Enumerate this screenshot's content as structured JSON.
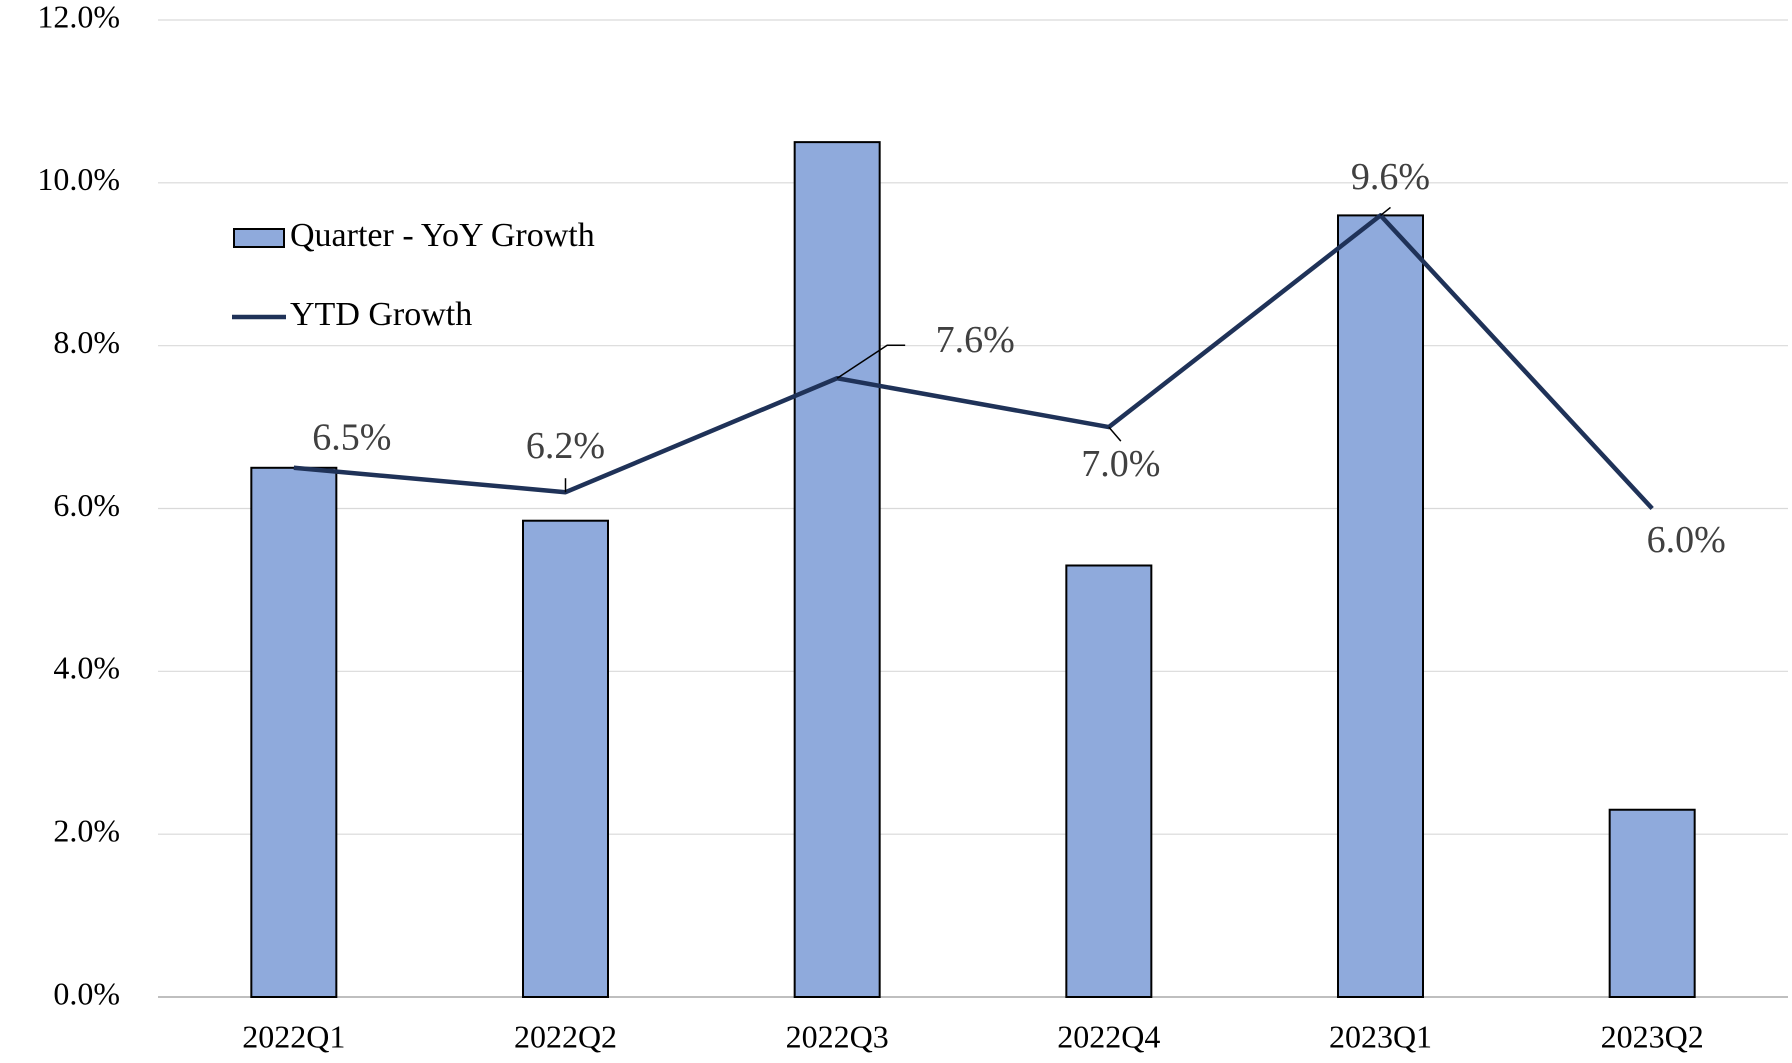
{
  "chart_data": {
    "type": "bar_line",
    "categories": [
      "2022Q1",
      "2022Q2",
      "2022Q3",
      "2022Q4",
      "2023Q1",
      "2023Q2"
    ],
    "series": [
      {
        "name": "Quarter - YoY Growth",
        "type": "bar",
        "color": "#8faadc",
        "values": [
          6.5,
          5.85,
          10.5,
          5.3,
          9.6,
          2.3
        ]
      },
      {
        "name": "YTD Growth",
        "type": "line",
        "color": "#1f3258",
        "values": [
          6.5,
          6.2,
          7.6,
          7.0,
          9.6,
          6.0
        ],
        "value_labels": [
          "6.5%",
          "6.2%",
          "7.6%",
          "7.0%",
          "9.6%",
          "6.0%"
        ]
      }
    ],
    "ylim": [
      0,
      12
    ],
    "yticks": [
      {
        "value": 0,
        "label": "0.0%"
      },
      {
        "value": 2,
        "label": "2.0%"
      },
      {
        "value": 4,
        "label": "4.0%"
      },
      {
        "value": 6,
        "label": "6.0%"
      },
      {
        "value": 8,
        "label": "8.0%"
      },
      {
        "value": 10,
        "label": "10.0%"
      },
      {
        "value": 12,
        "label": "12.0%"
      }
    ],
    "grid": true
  }
}
